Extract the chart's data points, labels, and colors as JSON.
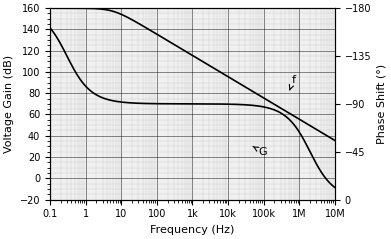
{
  "title": "",
  "xlabel": "Frequency (Hz)",
  "ylabel_left": "Voltage Gain (dB)",
  "ylabel_right": "Phase Shift (°)",
  "xlim": [
    0.1,
    10000000.0
  ],
  "ylim_left": [
    -20,
    160
  ],
  "ylim_right": [
    0,
    -180
  ],
  "yticks_left": [
    -20,
    0,
    20,
    40,
    60,
    80,
    100,
    120,
    140,
    160
  ],
  "yticks_right": [
    0,
    -45,
    -90,
    -135,
    -180
  ],
  "xtick_labels": [
    "0.1",
    "1",
    "10",
    "100",
    "1k",
    "10k",
    "100k",
    "1M",
    "10M"
  ],
  "xtick_values": [
    0.1,
    1,
    10,
    100,
    1000,
    10000,
    100000,
    1000000,
    10000000
  ],
  "gain_label": "G",
  "phase_label": "f",
  "background_color": "#f0f0f0",
  "line_color": "#000000",
  "grid_major_color": "#000000",
  "grid_minor_color": "#aaaaaa"
}
